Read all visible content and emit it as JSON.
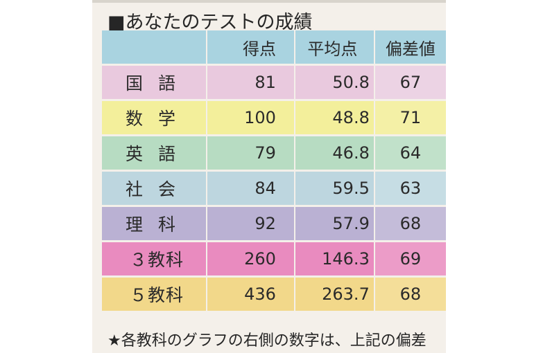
{
  "title": "■あなたのテストの成績",
  "headers": {
    "subject": "",
    "score": "得点",
    "average": "平均点",
    "deviation": "偏差値"
  },
  "rows": [
    {
      "subject": "国語",
      "score": "81",
      "average": "50.8",
      "deviation": "67",
      "color": "#e9c9de",
      "dev_color": "#ecd3e4"
    },
    {
      "subject": "数学",
      "score": "100",
      "average": "48.8",
      "deviation": "71",
      "color": "#f3ef9b",
      "dev_color": "#f4f0a6"
    },
    {
      "subject": "英語",
      "score": "79",
      "average": "46.8",
      "deviation": "64",
      "color": "#b7dcc2",
      "dev_color": "#c1e1ca"
    },
    {
      "subject": "社会",
      "score": "84",
      "average": "59.5",
      "deviation": "63",
      "color": "#bdd6df",
      "dev_color": "#c6dde4"
    },
    {
      "subject": "理科",
      "score": "92",
      "average": "57.9",
      "deviation": "68",
      "color": "#bab1d3",
      "dev_color": "#c4bcd9"
    },
    {
      "subject": "３教科",
      "score": "260",
      "average": "146.3",
      "deviation": "69",
      "color": "#e98bbf",
      "dev_color": "#ec9cc8"
    },
    {
      "subject": "５教科",
      "score": "436",
      "average": "263.7",
      "deviation": "68",
      "color": "#f2d88a",
      "dev_color": "#f4de99"
    }
  ],
  "footnote": "★各教科のグラフの右側の数字は、上記の偏差"
}
